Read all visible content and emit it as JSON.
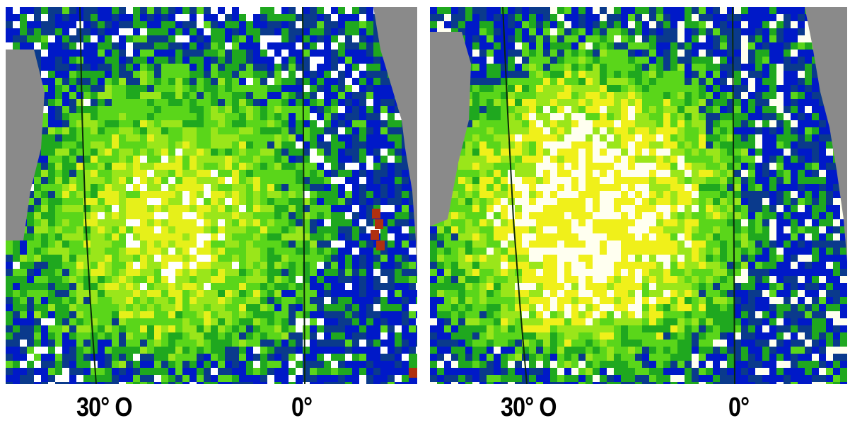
{
  "panels": [
    {
      "id": "left",
      "labels": {
        "lon_30": "30° O",
        "lon_0": "0°"
      },
      "palette": [
        "#0019c8",
        "#0a3a8c",
        "#1fa81f",
        "#5ad61a",
        "#9ae61a",
        "#e6f01a",
        "#ffffff",
        "#b03010",
        "#40c8c8"
      ]
    },
    {
      "id": "right",
      "labels": {
        "lon_30": "30° O",
        "lon_0": "0°"
      },
      "palette": [
        "#0019c8",
        "#0a3a8c",
        "#1fa81f",
        "#5ad61a",
        "#9ae61a",
        "#f0f01a",
        "#fffff0",
        "#ffffff"
      ]
    }
  ],
  "colors": {
    "land": "#8a8a8a",
    "ocean_low": "#0019c8",
    "mid": "#5ad61a",
    "high": "#f0f01a",
    "max": "#ffffff"
  }
}
